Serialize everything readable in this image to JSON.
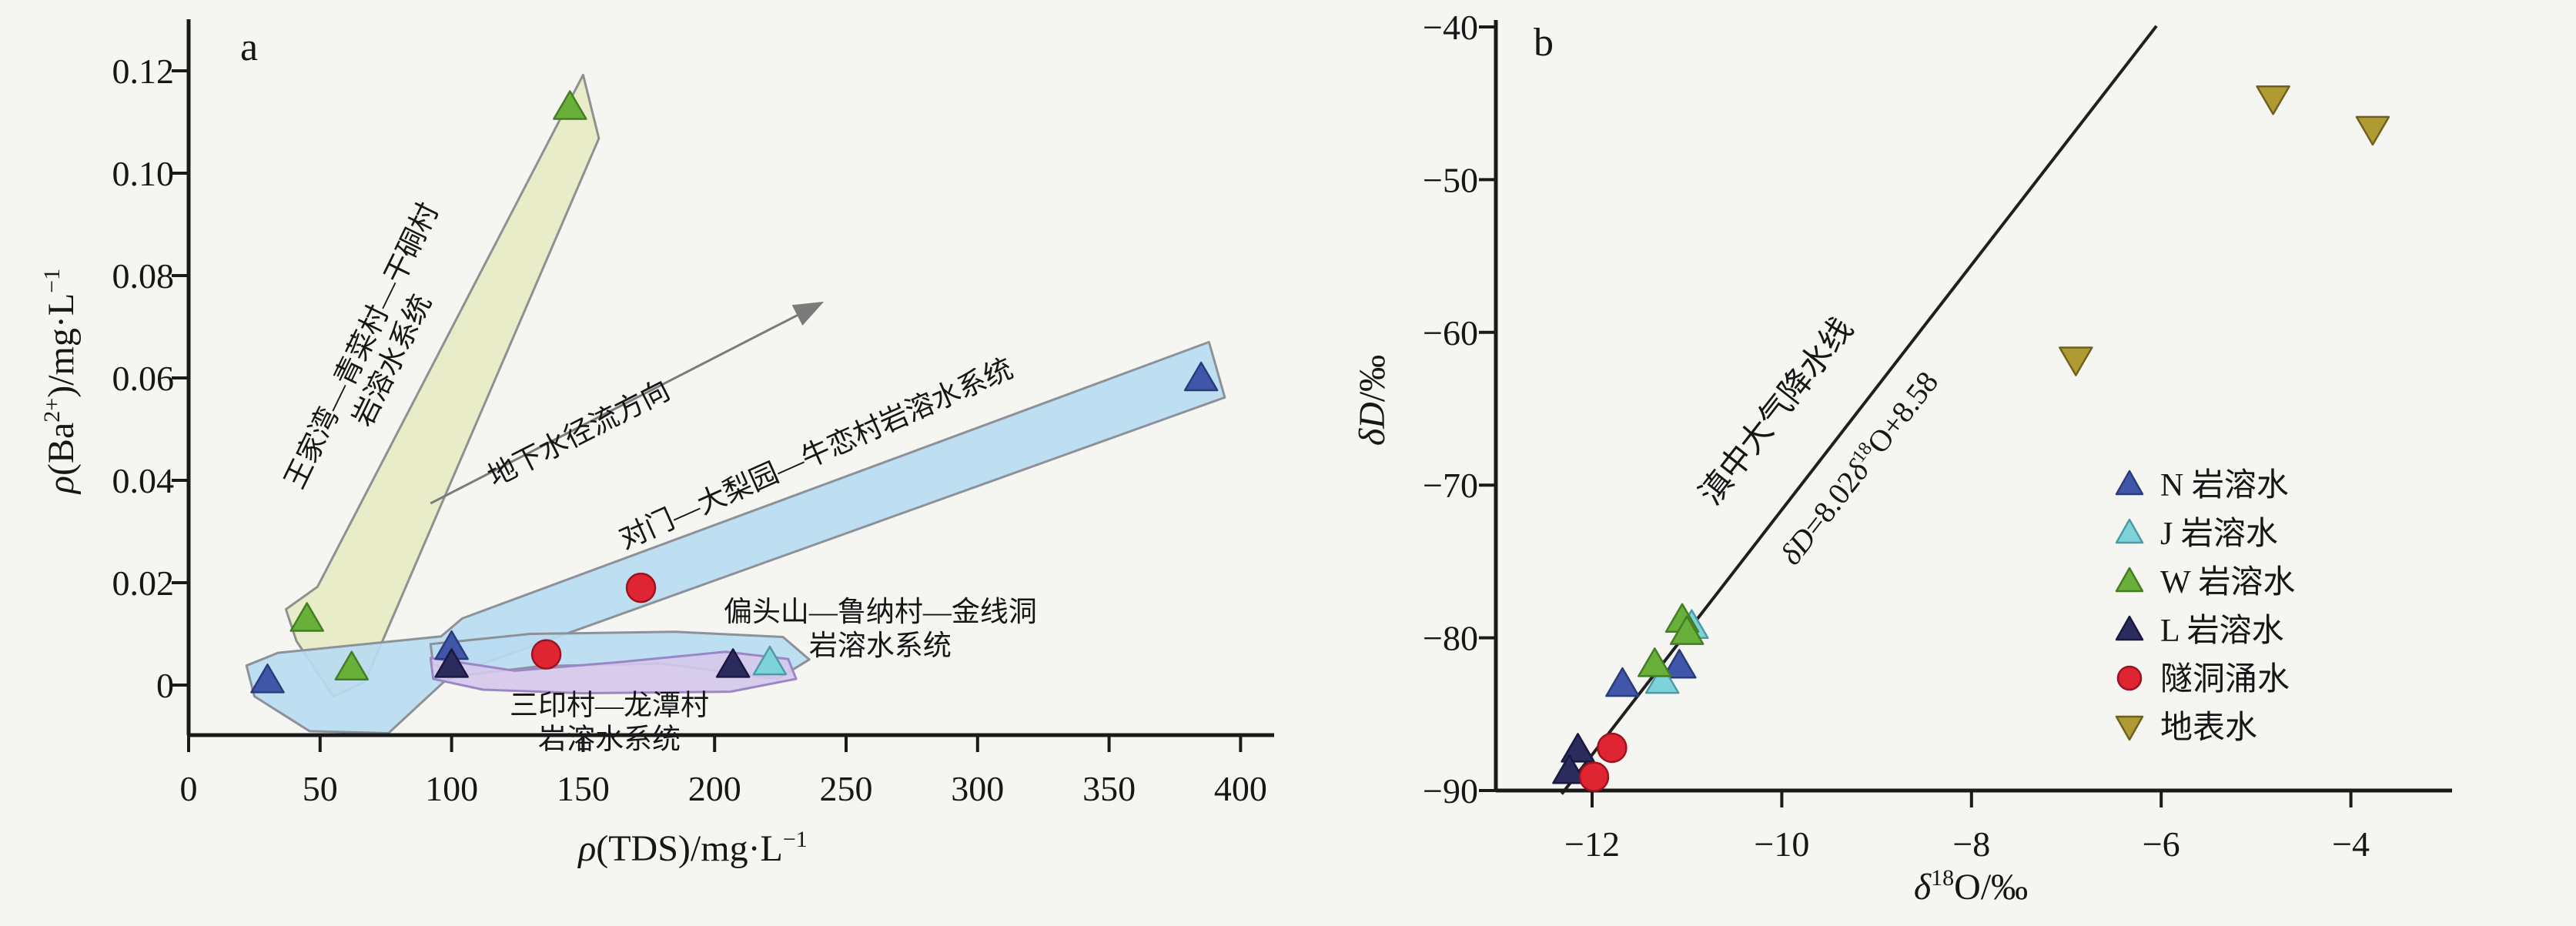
{
  "figure": {
    "background": "#f5f5f2"
  },
  "chart_data": [
    {
      "id": "a",
      "type": "scatter",
      "panel_label": "a",
      "xlabel_parts": [
        {
          "t": "ρ",
          "i": 1
        },
        {
          "t": "(TDS)/mg·L"
        },
        {
          "t": "−1",
          "sup": 1
        }
      ],
      "ylabel_parts": [
        {
          "t": "ρ",
          "i": 1
        },
        {
          "t": "(Ba"
        },
        {
          "t": "2+",
          "sup": 1
        },
        {
          "t": ")/mg·L"
        },
        {
          "t": "−1",
          "sup": 1
        }
      ],
      "xlim": [
        0,
        415
      ],
      "ylim": [
        -0.0098,
        0.13
      ],
      "grid": false,
      "xticks": [
        {
          "v": 0,
          "label": "0"
        },
        {
          "v": 50,
          "label": "50"
        },
        {
          "v": 100,
          "label": "100"
        },
        {
          "v": 150,
          "label": "150"
        },
        {
          "v": 200,
          "label": "200"
        },
        {
          "v": 250,
          "label": "250"
        },
        {
          "v": 300,
          "label": "300"
        },
        {
          "v": 350,
          "label": "350"
        },
        {
          "v": 400,
          "label": "400"
        }
      ],
      "yticks": [
        {
          "v": 0,
          "label": "0"
        },
        {
          "v": 0.02,
          "label": "0.02"
        },
        {
          "v": 0.04,
          "label": "0.04"
        },
        {
          "v": 0.06,
          "label": "0.06"
        },
        {
          "v": 0.08,
          "label": "0.08"
        },
        {
          "v": 0.1,
          "label": "0.10"
        },
        {
          "v": 0.12,
          "label": "0.12"
        }
      ],
      "series": [
        {
          "name": "N 岩溶水",
          "marker": "tri-up",
          "color": "#4056a8",
          "edge": "#2a3c7c",
          "points": [
            [
              30,
              0.001
            ],
            [
              100,
              0.0075
            ],
            [
              385,
              0.06
            ]
          ]
        },
        {
          "name": "J 岩溶水",
          "marker": "tri-up",
          "color": "#7ed3da",
          "edge": "#4d9aa6",
          "points": [
            [
              221,
              0.0045
            ]
          ]
        },
        {
          "name": "W 岩溶水",
          "marker": "tri-up",
          "color": "#68b03a",
          "edge": "#447d22",
          "points": [
            [
              45,
              0.013
            ],
            [
              62,
              0.0035
            ],
            [
              145,
              0.113
            ]
          ]
        },
        {
          "name": "L 岩溶水",
          "marker": "tri-up",
          "color": "#2c2b5e",
          "edge": "#191840",
          "points": [
            [
              100,
              0.004
            ],
            [
              207,
              0.004
            ]
          ]
        },
        {
          "name": "隧洞涌水",
          "marker": "circle",
          "color": "#e02532",
          "edge": "#9c1320",
          "points": [
            [
              136,
              0.006
            ],
            [
              172,
              0.019
            ]
          ]
        }
      ],
      "regions": [
        {
          "id": "wangjiawan",
          "label_lines": [
            "王家湾—青菜村—干硐村",
            "岩溶水系统"
          ],
          "fill": "#e7eac4",
          "stroke": "#909090",
          "label_cx": 69,
          "label_cy": 0.0655,
          "label_rot": -64,
          "points": [
            [
              37,
              0.0148
            ],
            [
              49,
              0.0192
            ],
            [
              150,
              0.1192
            ],
            [
              156,
              0.1068
            ],
            [
              67,
              0.0006
            ],
            [
              55,
              -0.0022
            ],
            [
              41,
              0.0086
            ]
          ]
        },
        {
          "id": "duimen",
          "label_lines": [
            "对门—大梨园—牛恋村岩溶水系统"
          ],
          "fill": "#b9dbf2",
          "stroke": "#8d9198",
          "label_cx": 240,
          "label_cy": 0.0435,
          "label_rot": -24,
          "points": [
            [
              22,
              0.0038
            ],
            [
              34,
              0.0063
            ],
            [
              96,
              0.0095
            ],
            [
              104,
              0.013
            ],
            [
              388,
              0.067
            ],
            [
              394,
              0.0562
            ],
            [
              112,
              0.0042
            ],
            [
              97,
              0.0006
            ],
            [
              76,
              -0.0094
            ],
            [
              46,
              -0.009
            ],
            [
              25,
              -0.0022
            ]
          ]
        },
        {
          "id": "piantoushan",
          "label_lines": [
            "偏头山—鲁纳村—金线洞",
            "岩溶水系统"
          ],
          "fill": "#b9dbf2",
          "stroke": "#8d9198",
          "label_cx": 263,
          "label_cy": 0.0125,
          "label_rot": 0,
          "points": [
            [
              92,
              0.008
            ],
            [
              130,
              0.01
            ],
            [
              185,
              0.0104
            ],
            [
              226,
              0.0094
            ],
            [
              236,
              0.005
            ],
            [
              224,
              0.0012
            ],
            [
              180,
              0.0042
            ],
            [
              134,
              0.0037
            ],
            [
              106,
              0.002
            ],
            [
              93,
              0.004
            ]
          ]
        },
        {
          "id": "sanyin",
          "label_lines": [
            "三印村—龙潭村",
            "岩溶水系统"
          ],
          "fill": "#d5c8ec",
          "stroke": "#9b87c6",
          "label_cx": 160,
          "label_cy": -0.0058,
          "label_rot": 0,
          "points": [
            [
              92,
              0.0053
            ],
            [
              124,
              0.0028
            ],
            [
              164,
              0.0045
            ],
            [
              204,
              0.0065
            ],
            [
              228,
              0.0051
            ],
            [
              231,
              0.0012
            ],
            [
              206,
              -0.0013
            ],
            [
              150,
              -0.0016
            ],
            [
              112,
              -0.0009
            ],
            [
              93,
              0.0012
            ]
          ]
        }
      ],
      "flow_arrow": {
        "x1": 92,
        "y1": 0.0355,
        "x2": 240,
        "y2": 0.0745,
        "label": "地下水径流方向",
        "label_cx": 150,
        "label_cy": 0.0475,
        "label_rot": -27,
        "color": "#7b7b7b"
      }
    },
    {
      "id": "b",
      "type": "scatter",
      "panel_label": "b",
      "xlabel_parts": [
        {
          "t": "δ",
          "i": 1
        },
        {
          "t": "18",
          "sup": 1
        },
        {
          "t": "O/‰"
        }
      ],
      "ylabel_parts": [
        {
          "t": "δD",
          "i": 1
        },
        {
          "t": "/‰"
        }
      ],
      "xlim": [
        -13,
        -3
      ],
      "ylim": [
        -90,
        -39.5
      ],
      "grid": false,
      "xticks": [
        {
          "v": -12,
          "label": "−12"
        },
        {
          "v": -10,
          "label": "−10"
        },
        {
          "v": -8,
          "label": "−8"
        },
        {
          "v": -6,
          "label": "−6"
        },
        {
          "v": -4,
          "label": "−4"
        }
      ],
      "yticks": [
        {
          "v": -90,
          "label": "−90"
        },
        {
          "v": -80,
          "label": "−80"
        },
        {
          "v": -70,
          "label": "−70"
        },
        {
          "v": -60,
          "label": "−60"
        },
        {
          "v": -50,
          "label": "−50"
        },
        {
          "v": -40,
          "label": "−40"
        }
      ],
      "meteoric_line": {
        "label": "滇中大气降水线",
        "equation_parts": [
          {
            "t": "δD",
            "i": 1
          },
          {
            "t": "=8.02"
          },
          {
            "t": "δ",
            "i": 1
          },
          {
            "t": "18",
            "sup": 1
          },
          {
            "t": "O+8.58"
          }
        ],
        "slope": 8.02,
        "intercept": 8.58,
        "x1": -12.32,
        "x2": -6.05,
        "color": "#1f1f1f",
        "label_cx": -9.97,
        "label_cy": -65.6,
        "eq_cx": -9.1,
        "eq_cy": -69.3,
        "rot": -52
      },
      "series": [
        {
          "name": "N 岩溶水",
          "marker": "tri-up",
          "color": "#4056a8",
          "edge": "#2a3c7c",
          "points": [
            [
              -11.68,
              -83
            ],
            [
              -11.08,
              -81.8
            ]
          ]
        },
        {
          "name": "J 岩溶水",
          "marker": "tri-up",
          "color": "#7ed3da",
          "edge": "#4d9aa6",
          "points": [
            [
              -11.26,
              -82.8
            ],
            [
              -10.95,
              -79.2
            ]
          ]
        },
        {
          "name": "W 岩溶水",
          "marker": "tri-up",
          "color": "#68b03a",
          "edge": "#447d22",
          "points": [
            [
              -11.34,
              -81.7
            ],
            [
              -11.05,
              -78.8
            ],
            [
              -11,
              -79.6
            ]
          ]
        },
        {
          "name": "L 岩溶水",
          "marker": "tri-up",
          "color": "#2c2b5e",
          "edge": "#191840",
          "points": [
            [
              -12.15,
              -87.3
            ],
            [
              -12.24,
              -88.7
            ]
          ]
        },
        {
          "name": "隧洞涌水",
          "marker": "circle",
          "color": "#e02532",
          "edge": "#9c1320",
          "points": [
            [
              -11.79,
              -87.2
            ],
            [
              -11.98,
              -89.1
            ]
          ]
        },
        {
          "name": "地表水",
          "marker": "tri-down",
          "color": "#b09b33",
          "edge": "#6e6120",
          "points": [
            [
              -6.9,
              -61.8
            ],
            [
              -4.82,
              -44.7
            ],
            [
              -3.77,
              -46.7
            ]
          ]
        }
      ],
      "legend": {
        "items": [
          "N 岩溶水",
          "J 岩溶水",
          "W 岩溶水",
          "L 岩溶水",
          "隧洞涌水",
          "地表水"
        ]
      }
    }
  ]
}
